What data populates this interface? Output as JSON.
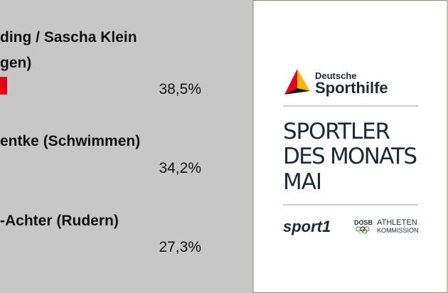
{
  "results": [
    {
      "name_lines": [
        "ding / Sascha Klein",
        "gen)"
      ],
      "percent": "38,5%"
    },
    {
      "name_lines": [
        "entke (Schwimmen)"
      ],
      "percent": "34,2%"
    },
    {
      "name_lines": [
        "-Achter (Rudern)"
      ],
      "percent": "27,3%"
    }
  ],
  "logo": {
    "top": "Deutsche",
    "name": "Sporthilfe"
  },
  "title_lines": [
    "SPORTLER",
    "DES MONATS",
    "MAI"
  ],
  "partners": {
    "sport1": "sport1",
    "dosb": "DOSB",
    "commission": [
      "ATHLETEN",
      "KOMMISSION"
    ]
  }
}
